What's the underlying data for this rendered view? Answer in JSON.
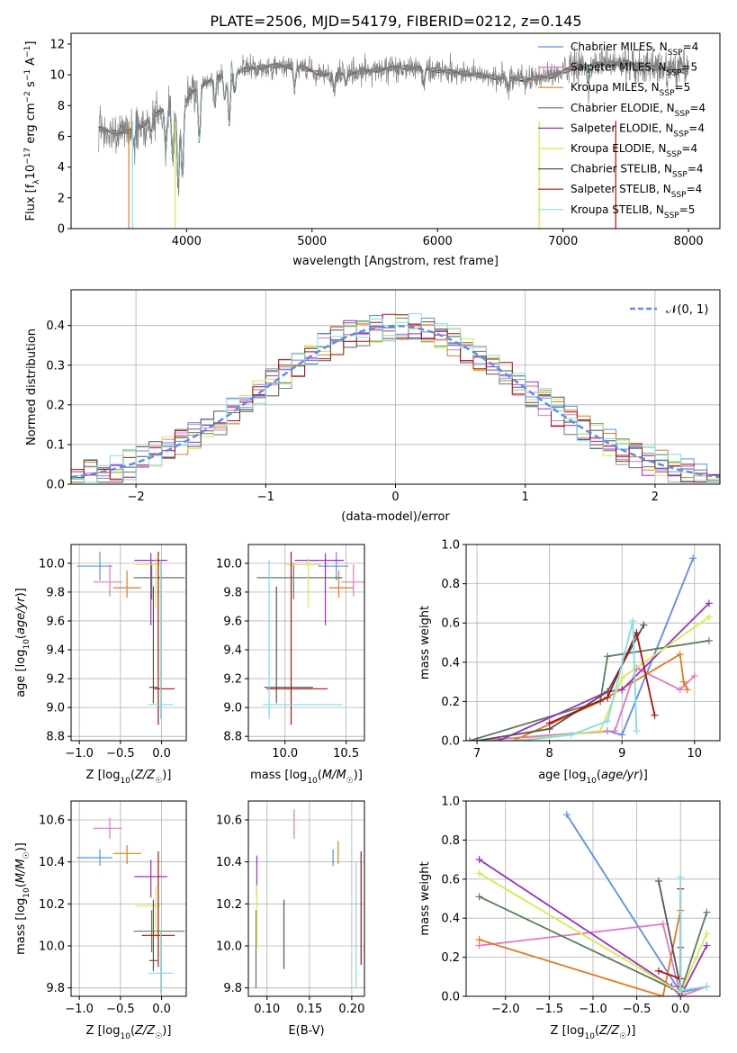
{
  "title": "PLATE=2506, MJD=54179, FIBERID=0212, z=0.145",
  "colors": {
    "chabrier_miles": "#5b8def",
    "salpeter_miles": "#e377c2",
    "kroupa_miles": "#e07b20",
    "chabrier_elodie": "#5a7f5a",
    "salpeter_elodie": "#9b2fbf",
    "kroupa_elodie": "#d4ec4c",
    "chabrier_stelib": "#555555",
    "salpeter_stelib": "#aa1111",
    "kroupa_stelib": "#7fdde6",
    "data": "#808080",
    "normal": "#5b8def"
  },
  "legend_spectrum": [
    {
      "key": "chabrier_miles",
      "label": "Chabrier MILES, N",
      "sub": "SSP",
      "tail": "=4"
    },
    {
      "key": "salpeter_miles",
      "label": "Salpeter MILES, N",
      "sub": "SSP",
      "tail": "=5"
    },
    {
      "key": "kroupa_miles",
      "label": "Kroupa MILES, N",
      "sub": "SSP",
      "tail": "=5"
    },
    {
      "key": "chabrier_elodie",
      "label": "Chabrier ELODIE, N",
      "sub": "SSP",
      "tail": "=4"
    },
    {
      "key": "salpeter_elodie",
      "label": "Salpeter ELODIE, N",
      "sub": "SSP",
      "tail": "=4"
    },
    {
      "key": "kroupa_elodie",
      "label": "Kroupa ELODIE, N",
      "sub": "SSP",
      "tail": "=4"
    },
    {
      "key": "chabrier_stelib",
      "label": "Chabrier STELIB, N",
      "sub": "SSP",
      "tail": "=4"
    },
    {
      "key": "salpeter_stelib",
      "label": "Salpeter STELIB, N",
      "sub": "SSP",
      "tail": "=4"
    },
    {
      "key": "kroupa_stelib",
      "label": "Kroupa STELIB, N",
      "sub": "SSP",
      "tail": "=5"
    }
  ],
  "legend_normal": "𝒩(0, 1)",
  "chart_data": [
    {
      "id": "spectrum",
      "type": "line",
      "xlabel": "wavelength [Angstrom, rest frame]",
      "ylabel": "Flux [f_λ 10^-17 erg cm^-2 s^-1 A^-1]",
      "xlim": [
        3080,
        8250
      ],
      "ylim": [
        0,
        12.7
      ],
      "xticks": [
        4000,
        5000,
        6000,
        7000,
        8000
      ],
      "yticks": [
        0,
        2,
        4,
        6,
        8,
        10,
        12
      ],
      "continuum": [
        [
          3300,
          6.5
        ],
        [
          3450,
          6.2
        ],
        [
          3600,
          6.4
        ],
        [
          3750,
          7.4
        ],
        [
          3850,
          7.9
        ],
        [
          3950,
          7.6
        ],
        [
          4050,
          8.9
        ],
        [
          4150,
          9.5
        ],
        [
          4300,
          10.0
        ],
        [
          4500,
          10.4
        ],
        [
          4700,
          10.6
        ],
        [
          4900,
          10.5
        ],
        [
          5100,
          10.0
        ],
        [
          5300,
          10.1
        ],
        [
          5500,
          10.3
        ],
        [
          5700,
          10.5
        ],
        [
          5900,
          10.4
        ],
        [
          6100,
          10.2
        ],
        [
          6300,
          10.0
        ],
        [
          6500,
          9.8
        ],
        [
          6700,
          9.7
        ],
        [
          6900,
          9.9
        ],
        [
          7100,
          10.5
        ],
        [
          7300,
          10.7
        ],
        [
          7500,
          10.8
        ],
        [
          7700,
          10.5
        ],
        [
          7900,
          10.3
        ],
        [
          8000,
          10.2
        ]
      ],
      "absorption": [
        [
          3580,
          5.5
        ],
        [
          3720,
          6.3
        ],
        [
          3835,
          5.0
        ],
        [
          3890,
          4.4
        ],
        [
          3934,
          2.6
        ],
        [
          3968,
          3.1
        ],
        [
          4102,
          5.6
        ],
        [
          4226,
          7.9
        ],
        [
          4304,
          8.3
        ],
        [
          4340,
          6.8
        ],
        [
          4383,
          8.9
        ],
        [
          4861,
          9.3
        ],
        [
          5175,
          9.0
        ],
        [
          5270,
          9.4
        ],
        [
          5890,
          9.3
        ],
        [
          6563,
          9.1
        ],
        [
          7200,
          9.4
        ]
      ]
    },
    {
      "id": "residuals",
      "type": "histogram",
      "xlabel": "(data-model)/error",
      "ylabel": "Normed distribution",
      "xlim": [
        -2.5,
        2.5
      ],
      "ylim": [
        0,
        0.49
      ],
      "xticks": [
        -2,
        -1,
        0,
        1,
        2
      ],
      "yticks": [
        0.0,
        0.1,
        0.2,
        0.3,
        0.4
      ],
      "bins": 50,
      "bin_edges": [
        -2.5,
        2.5
      ],
      "reference": "normal(0,1)"
    },
    {
      "id": "z_age",
      "type": "scatter",
      "xlabel": "Z [log10(Z/Z☉)]",
      "ylabel": "age [log10(age/yr)]",
      "xlim": [
        -1.1,
        0.3
      ],
      "ylim": [
        8.77,
        10.13
      ],
      "xticks": [
        -1.0,
        -0.5,
        0.0
      ],
      "yticks": [
        8.8,
        9.0,
        9.2,
        9.4,
        9.6,
        9.8,
        10.0
      ],
      "points": [
        {
          "key": "chabrier_miles",
          "x": -0.75,
          "y": 9.98,
          "xerr": [
            0.28,
            0.15
          ],
          "yerr": [
            0.1,
            0.1
          ]
        },
        {
          "key": "salpeter_miles",
          "x": -0.63,
          "y": 9.87,
          "xerr": [
            0.2,
            0.15
          ],
          "yerr": [
            0.1,
            0.12
          ]
        },
        {
          "key": "kroupa_miles",
          "x": -0.42,
          "y": 9.83,
          "xerr": [
            0.17,
            0.17
          ],
          "yerr": [
            0.07,
            0.12
          ]
        },
        {
          "key": "chabrier_elodie",
          "x": -0.12,
          "y": 9.9,
          "xerr": [
            0.22,
            0.4
          ],
          "yerr": [
            0.15,
            0.1
          ]
        },
        {
          "key": "salpeter_elodie",
          "x": -0.13,
          "y": 10.02,
          "xerr": [
            0.2,
            0.2
          ],
          "yerr": [
            0.45,
            0.05
          ]
        },
        {
          "key": "kroupa_elodie",
          "x": -0.07,
          "y": 9.99,
          "xerr": [
            0.25,
            0.05
          ],
          "yerr": [
            0.3,
            0.05
          ]
        },
        {
          "key": "chabrier_stelib",
          "x": -0.1,
          "y": 9.14,
          "xerr": [
            0.05,
            0.05
          ],
          "yerr": [
            0.11,
            0.7
          ]
        },
        {
          "key": "salpeter_stelib",
          "x": -0.04,
          "y": 9.13,
          "xerr": [
            0.05,
            0.2
          ],
          "yerr": [
            0.25,
            0.95
          ]
        },
        {
          "key": "kroupa_stelib",
          "x": -0.01,
          "y": 9.02,
          "xerr": [
            0.15,
            0.15
          ],
          "yerr": [
            0.1,
            1.0
          ]
        }
      ]
    },
    {
      "id": "mass_age",
      "type": "scatter",
      "xlabel": "mass [log10(M/M☉)]",
      "ylabel": "",
      "xlim": [
        9.7,
        10.65
      ],
      "ylim": [
        8.77,
        10.13
      ],
      "xticks": [
        10.0,
        10.5
      ],
      "yticks": [
        8.8,
        9.0,
        9.2,
        9.4,
        9.6,
        9.8,
        10.0
      ],
      "points": [
        {
          "key": "chabrier_miles",
          "x": 10.42,
          "y": 9.98,
          "xerr": [
            0.15,
            0.1
          ],
          "yerr": [
            0.1,
            0.1
          ]
        },
        {
          "key": "salpeter_miles",
          "x": 10.56,
          "y": 9.87,
          "xerr": [
            0.1,
            0.1
          ],
          "yerr": [
            0.1,
            0.12
          ]
        },
        {
          "key": "kroupa_miles",
          "x": 10.44,
          "y": 9.83,
          "xerr": [
            0.08,
            0.12
          ],
          "yerr": [
            0.07,
            0.12
          ]
        },
        {
          "key": "chabrier_elodie",
          "x": 10.07,
          "y": 9.9,
          "xerr": [
            0.3,
            0.4
          ],
          "yerr": [
            0.15,
            0.1
          ]
        },
        {
          "key": "salpeter_elodie",
          "x": 10.33,
          "y": 10.02,
          "xerr": [
            0.25,
            0.15
          ],
          "yerr": [
            0.45,
            0.05
          ]
        },
        {
          "key": "kroupa_elodie",
          "x": 10.19,
          "y": 9.99,
          "xerr": [
            0.2,
            0.1
          ],
          "yerr": [
            0.3,
            0.05
          ]
        },
        {
          "key": "chabrier_stelib",
          "x": 9.93,
          "y": 9.14,
          "xerr": [
            0.1,
            0.3
          ],
          "yerr": [
            0.11,
            0.7
          ]
        },
        {
          "key": "salpeter_stelib",
          "x": 10.05,
          "y": 9.13,
          "xerr": [
            0.2,
            0.3
          ],
          "yerr": [
            0.25,
            0.95
          ]
        },
        {
          "key": "kroupa_stelib",
          "x": 9.87,
          "y": 9.02,
          "xerr": [
            0.05,
            0.6
          ],
          "yerr": [
            0.1,
            1.0
          ]
        }
      ]
    },
    {
      "id": "age_weight",
      "type": "line",
      "xlabel": "age [log10(age/yr)]",
      "ylabel": "mass weight",
      "xlim": [
        6.85,
        10.35
      ],
      "ylim": [
        0,
        1.0
      ],
      "xticks": [
        7,
        8,
        9,
        10
      ],
      "yticks": [
        0.0,
        0.2,
        0.4,
        0.6,
        0.8,
        1.0
      ],
      "series": [
        {
          "key": "chabrier_miles",
          "x": [
            7.0,
            8.8,
            9.0,
            9.98
          ],
          "y": [
            0.0,
            0.05,
            0.03,
            0.93
          ]
        },
        {
          "key": "salpeter_miles",
          "x": [
            7.0,
            8.9,
            9.2,
            9.8,
            10.0
          ],
          "y": [
            0.0,
            0.05,
            0.37,
            0.26,
            0.33
          ]
        },
        {
          "key": "kroupa_miles",
          "x": [
            7.5,
            8.7,
            9.8,
            9.85,
            9.9
          ],
          "y": [
            0.0,
            0.2,
            0.44,
            0.3,
            0.26
          ]
        },
        {
          "key": "chabrier_elodie",
          "x": [
            6.9,
            8.7,
            8.8,
            10.2
          ],
          "y": [
            0.0,
            0.2,
            0.43,
            0.51
          ]
        },
        {
          "key": "salpeter_elodie",
          "x": [
            7.3,
            8.8,
            9.0,
            10.2
          ],
          "y": [
            0.0,
            0.25,
            0.26,
            0.7
          ]
        },
        {
          "key": "kroupa_elodie",
          "x": [
            7.5,
            8.7,
            9.0,
            10.2
          ],
          "y": [
            0.0,
            0.05,
            0.32,
            0.63
          ]
        },
        {
          "key": "chabrier_stelib",
          "x": [
            7.0,
            8.0,
            8.8,
            9.3
          ],
          "y": [
            0.0,
            0.06,
            0.25,
            0.59
          ]
        },
        {
          "key": "salpeter_stelib",
          "x": [
            8.0,
            8.8,
            9.2,
            9.45
          ],
          "y": [
            0.09,
            0.22,
            0.55,
            0.13
          ]
        },
        {
          "key": "kroupa_stelib",
          "x": [
            7.6,
            8.3,
            8.8,
            9.15,
            9.2
          ],
          "y": [
            0.0,
            0.03,
            0.1,
            0.61,
            0.05
          ]
        }
      ]
    },
    {
      "id": "z_mass",
      "type": "scatter",
      "xlabel": "Z [log10(Z/Z☉)]",
      "ylabel": "mass [log10(M/M☉)]",
      "xlim": [
        -1.1,
        0.3
      ],
      "ylim": [
        9.76,
        10.69
      ],
      "xticks": [
        -1.0,
        -0.5,
        0.0
      ],
      "yticks": [
        9.8,
        10.0,
        10.2,
        10.4,
        10.6
      ],
      "points": [
        {
          "key": "chabrier_miles",
          "x": -0.75,
          "y": 10.42,
          "xerr": [
            0.28,
            0.15
          ],
          "yerr": [
            0.04,
            0.04
          ]
        },
        {
          "key": "salpeter_miles",
          "x": -0.63,
          "y": 10.56,
          "xerr": [
            0.2,
            0.15
          ],
          "yerr": [
            0.05,
            0.05
          ]
        },
        {
          "key": "kroupa_miles",
          "x": -0.42,
          "y": 10.44,
          "xerr": [
            0.17,
            0.17
          ],
          "yerr": [
            0.05,
            0.04
          ]
        },
        {
          "key": "chabrier_elodie",
          "x": -0.12,
          "y": 10.07,
          "xerr": [
            0.22,
            0.4
          ],
          "yerr": [
            0.1,
            0.1
          ]
        },
        {
          "key": "salpeter_elodie",
          "x": -0.13,
          "y": 10.33,
          "xerr": [
            0.2,
            0.2
          ],
          "yerr": [
            0.1,
            0.08
          ]
        },
        {
          "key": "kroupa_elodie",
          "x": -0.07,
          "y": 10.19,
          "xerr": [
            0.25,
            0.05
          ],
          "yerr": [
            0.15,
            0.1
          ]
        },
        {
          "key": "chabrier_stelib",
          "x": -0.1,
          "y": 9.93,
          "xerr": [
            0.05,
            0.05
          ],
          "yerr": [
            0.05,
            0.29
          ]
        },
        {
          "key": "salpeter_stelib",
          "x": -0.04,
          "y": 10.05,
          "xerr": [
            0.2,
            0.2
          ],
          "yerr": [
            0.15,
            0.4
          ]
        },
        {
          "key": "kroupa_stelib",
          "x": -0.01,
          "y": 9.87,
          "xerr": [
            0.15,
            0.15
          ],
          "yerr": [
            0.1,
            0.2
          ]
        }
      ]
    },
    {
      "id": "ebv_mass",
      "type": "scatter",
      "xlabel": "E(B-V)",
      "ylabel": "",
      "xlim": [
        0.078,
        0.215
      ],
      "ylim": [
        9.76,
        10.69
      ],
      "xticks": [
        0.1,
        0.15,
        0.2
      ],
      "yticks": [
        9.8,
        10.0,
        10.2,
        10.4,
        10.6
      ],
      "points": [
        {
          "key": "chabrier_miles",
          "x": 0.178,
          "y": 10.42,
          "yerr": [
            0.04,
            0.04
          ]
        },
        {
          "key": "salpeter_miles",
          "x": 0.132,
          "y": 10.56,
          "yerr": [
            0.05,
            0.09
          ]
        },
        {
          "key": "kroupa_miles",
          "x": 0.184,
          "y": 10.44,
          "yerr": [
            0.05,
            0.06
          ]
        },
        {
          "key": "chabrier_elodie",
          "x": 0.087,
          "y": 10.07,
          "yerr": [
            0.27,
            0.1
          ]
        },
        {
          "key": "salpeter_elodie",
          "x": 0.088,
          "y": 10.33,
          "yerr": [
            0.1,
            0.1
          ]
        },
        {
          "key": "kroupa_elodie",
          "x": 0.088,
          "y": 10.19,
          "yerr": [
            0.2,
            0.1
          ]
        },
        {
          "key": "chabrier_stelib",
          "x": 0.12,
          "y": 10.05,
          "yerr": [
            0.16,
            0.17
          ]
        },
        {
          "key": "salpeter_stelib",
          "x": 0.211,
          "y": 10.18,
          "yerr": [
            0.27,
            0.27
          ]
        },
        {
          "key": "kroupa_stelib",
          "x": 0.205,
          "y": 10.1,
          "yerr": [
            0.3,
            0.3
          ]
        }
      ]
    },
    {
      "id": "z_weight",
      "type": "line",
      "xlabel": "Z [log10(Z/Z☉)]",
      "ylabel": "mass weight",
      "xlim": [
        -2.45,
        0.45
      ],
      "ylim": [
        0,
        1.0
      ],
      "xticks": [
        -2.0,
        -1.5,
        -1.0,
        -0.5,
        0.0
      ],
      "yticks": [
        0.0,
        0.2,
        0.4,
        0.6,
        0.8,
        1.0
      ],
      "series": [
        {
          "key": "chabrier_miles",
          "x": [
            -1.3,
            0.0,
            0.3
          ],
          "y": [
            0.93,
            0.02,
            0.05
          ]
        },
        {
          "key": "salpeter_miles",
          "x": [
            -2.3,
            -0.2,
            0.0,
            0.3
          ],
          "y": [
            0.26,
            0.37,
            0.0,
            0.05
          ]
        },
        {
          "key": "kroupa_miles",
          "x": [
            -2.3,
            -0.2,
            0.0
          ],
          "y": [
            0.29,
            0.0,
            0.44
          ]
        },
        {
          "key": "chabrier_elodie",
          "x": [
            -2.3,
            0.0,
            0.3
          ],
          "y": [
            0.51,
            0.02,
            0.43
          ]
        },
        {
          "key": "salpeter_elodie",
          "x": [
            -2.3,
            -0.1,
            0.0,
            0.3
          ],
          "y": [
            0.7,
            0.05,
            0.0,
            0.26
          ]
        },
        {
          "key": "kroupa_elodie",
          "x": [
            -2.3,
            0.0,
            0.3
          ],
          "y": [
            0.63,
            0.02,
            0.32
          ]
        },
        {
          "key": "chabrier_stelib",
          "x": [
            -0.25,
            0.0,
            0.0
          ],
          "y": [
            0.59,
            0.05,
            0.25
          ]
        },
        {
          "key": "salpeter_stelib",
          "x": [
            -0.25,
            0.0,
            0.0
          ],
          "y": [
            0.13,
            0.09,
            0.55
          ]
        },
        {
          "key": "kroupa_stelib",
          "x": [
            0.0,
            0.0,
            0.3
          ],
          "y": [
            0.61,
            0.03,
            0.05
          ]
        }
      ]
    }
  ]
}
